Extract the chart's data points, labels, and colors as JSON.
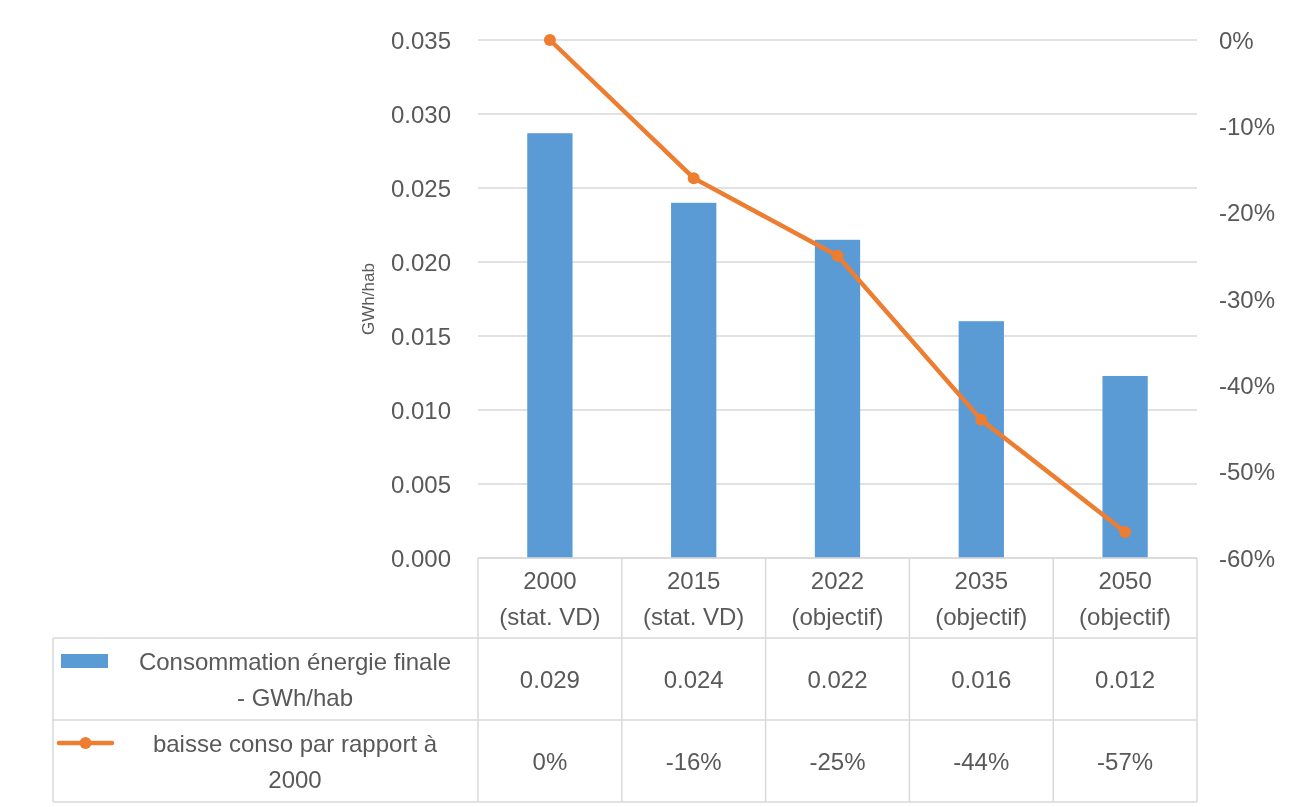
{
  "chart_data": {
    "type": "bar",
    "ylabel": "GWh/hab",
    "categories": [
      "2000 (stat. VD)",
      "2015 (stat. VD)",
      "2022 (objectif)",
      "2035 (objectif)",
      "2050 (objectif)"
    ],
    "series": [
      {
        "name": "Consommation énergie finale - GWh/hab",
        "color": "#5b9bd5",
        "values": [
          0.0287,
          0.024,
          0.0215,
          0.016,
          0.0123
        ],
        "value_labels": [
          "0.029",
          "0.024",
          "0.022",
          "0.016",
          "0.012"
        ]
      },
      {
        "name": "baisse conso par rapport à 2000",
        "type": "line",
        "axis": "y2",
        "color": "#ed7d31",
        "values": [
          0,
          -16,
          -25,
          -44,
          -57
        ],
        "value_labels": [
          "0%",
          "-16%",
          "-25%",
          "-44%",
          "-57%"
        ]
      }
    ],
    "ylim": [
      0,
      0.035
    ],
    "yticks": [
      {
        "value": 0,
        "label": "0.000"
      },
      0.005,
      {
        "value": 0.01,
        "label": "0.010"
      },
      0.015,
      {
        "value": 0.02,
        "label": "0.020"
      },
      0.025,
      {
        "value": 0.03,
        "label": "0.030"
      },
      0.035
    ],
    "y2lim": [
      -60,
      0
    ],
    "y2ticks": [
      {
        "value": -60,
        "label": "-60%"
      },
      {
        "value": -50,
        "label": "-50%"
      },
      {
        "value": -40,
        "label": "-40%"
      },
      {
        "value": -30,
        "label": "-30%"
      },
      {
        "value": -20,
        "label": "-20%"
      },
      {
        "value": -10,
        "label": "-10%"
      },
      {
        "value": 0,
        "label": "0%"
      }
    ],
    "grid": "y",
    "legend": "bottom",
    "marker": "circle"
  }
}
